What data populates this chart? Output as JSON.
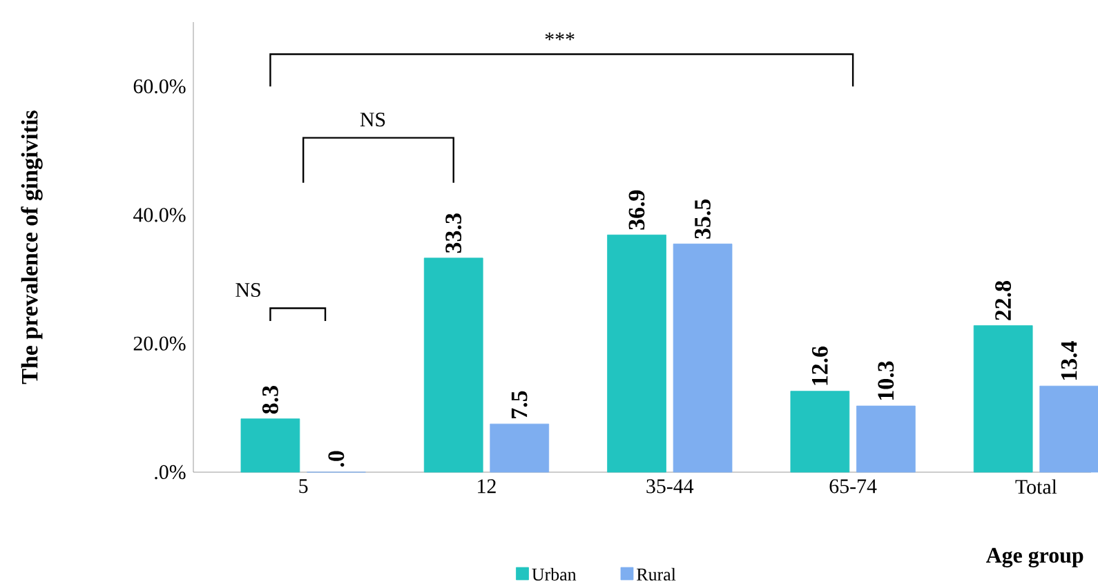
{
  "chart_data": {
    "type": "bar",
    "ylabel": "The prevalence of gingivitis",
    "xlabel": "Age group",
    "categories": [
      "5",
      "12",
      "35-44",
      "65-74",
      "Total"
    ],
    "series": [
      {
        "name": "Urban",
        "color": "#22c4c0",
        "values": [
          8.3,
          33.3,
          36.9,
          12.6,
          22.8
        ],
        "value_labels": [
          "8.3",
          "33.3",
          "36.9",
          "12.6",
          "22.8"
        ]
      },
      {
        "name": "Rural",
        "color": "#7eaef0",
        "values": [
          0,
          7.5,
          35.5,
          10.3,
          13.4
        ],
        "value_labels": [
          ".0",
          "7.5",
          "35.5",
          "10.3",
          "13.4"
        ]
      }
    ],
    "ylim": [
      0,
      70
    ],
    "yticks": [
      {
        "value": 0,
        "label": ".0%"
      },
      {
        "value": 20,
        "label": "20.0%"
      },
      {
        "value": 40,
        "label": "40.0%"
      },
      {
        "value": 60,
        "label": "60.0%"
      }
    ],
    "annotations": [
      "***",
      "NS",
      "NS"
    ],
    "legend": "bottom",
    "grid": false
  }
}
